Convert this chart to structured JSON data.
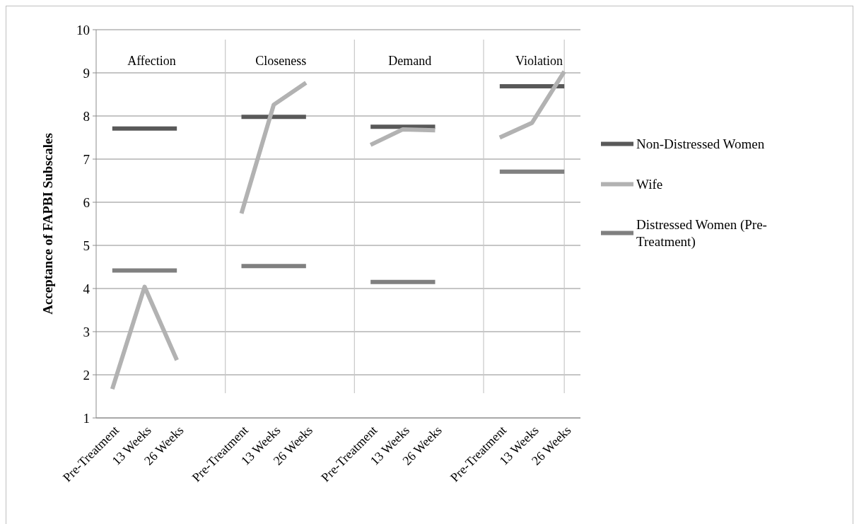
{
  "chart_data": {
    "type": "line",
    "ylabel": "Acceptance of FAPBI Subscales",
    "categories": [
      "Pre-Treatment",
      "13 Weeks",
      "26 Weeks",
      null,
      "Pre-Treatment",
      "13 Weeks",
      "26 Weeks",
      null,
      "Pre-Treatment",
      "13 Weeks",
      "26 Weeks",
      null,
      "Pre-Treatment",
      "13 Weeks",
      "26 Weeks"
    ],
    "series": [
      {
        "name": "Non-Distressed Women",
        "color": "#595959",
        "values": [
          7.71,
          7.71,
          7.71,
          null,
          7.98,
          7.98,
          7.98,
          null,
          7.75,
          7.75,
          7.75,
          null,
          8.69,
          8.69,
          8.69
        ]
      },
      {
        "name": "Wife",
        "color": "#b2b2b2",
        "values": [
          1.67,
          4.04,
          2.34,
          null,
          5.74,
          8.26,
          8.77,
          null,
          7.33,
          7.69,
          7.67,
          null,
          7.5,
          7.84,
          9.03
        ]
      },
      {
        "name": "Distressed Women (Pre-Treatment)",
        "color": "#808080",
        "values": [
          4.42,
          4.42,
          4.42,
          null,
          4.52,
          4.52,
          4.52,
          null,
          4.15,
          4.15,
          4.15,
          null,
          6.71,
          6.71,
          6.71
        ]
      }
    ],
    "annotations": [
      "Affection",
      "Closeness",
      "Demand",
      "Violation"
    ],
    "ylim": [
      1,
      10
    ],
    "yticks": [
      1,
      2,
      3,
      4,
      5,
      6,
      7,
      8,
      9,
      10
    ],
    "grid": "y",
    "legend": "right",
    "marker": "none",
    "line_style": "solid"
  }
}
